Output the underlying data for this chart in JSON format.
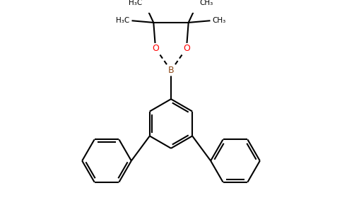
{
  "bg_color": "#ffffff",
  "bond_color": "#000000",
  "oxygen_color": "#ff0000",
  "boron_color": "#8B4513",
  "line_width": 1.5,
  "fig_width": 4.84,
  "fig_height": 3.0,
  "dpi": 100,
  "xlim": [
    -2.5,
    2.5
  ],
  "ylim": [
    -2.2,
    2.8
  ]
}
